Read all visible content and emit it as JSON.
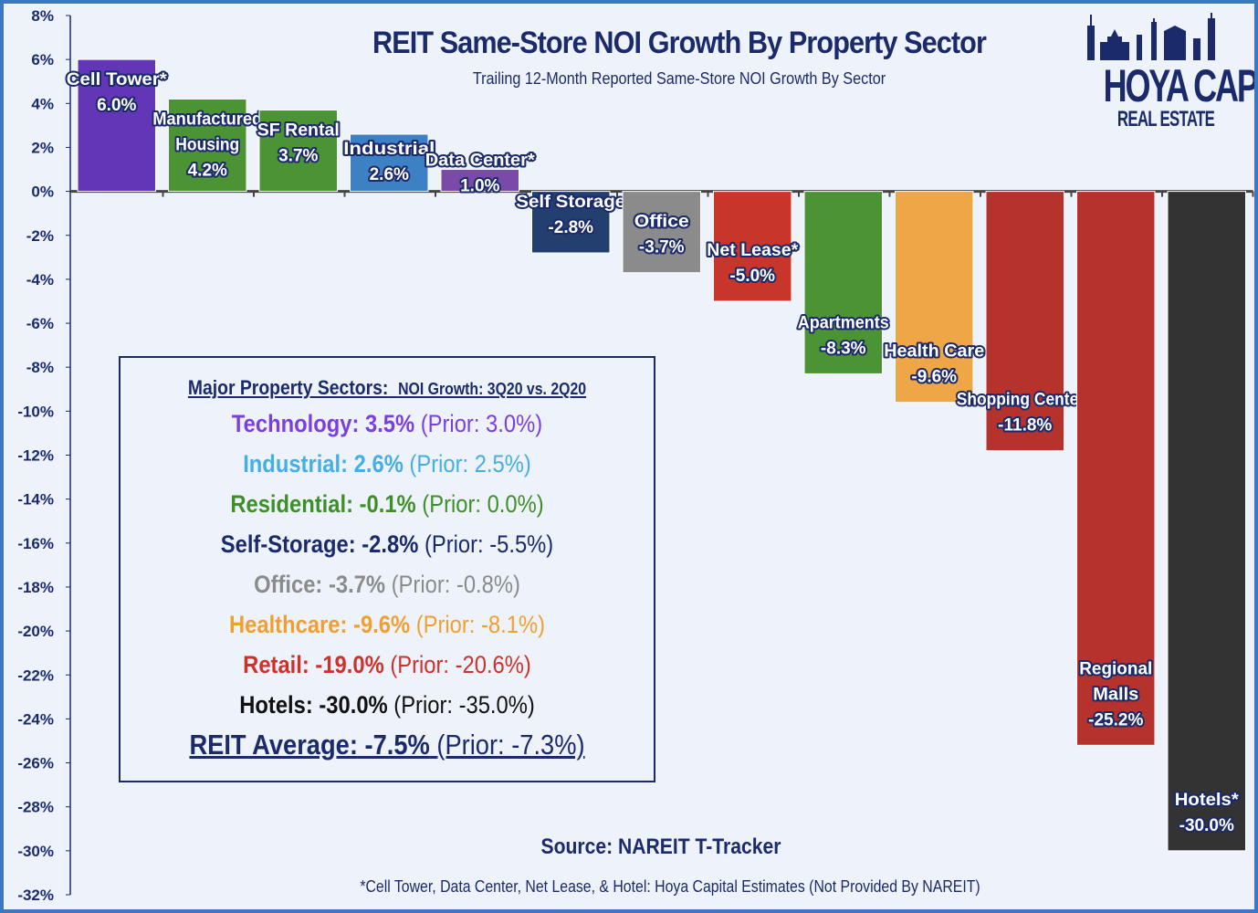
{
  "chart_data": {
    "type": "bar",
    "title": "REIT Same-Store NOI Growth By Property Sector",
    "subtitle": "Trailing 12-Month Reported Same-Store NOI Growth By Sector",
    "ylim": [
      -32,
      8
    ],
    "yticks": [
      8,
      6,
      4,
      2,
      0,
      -2,
      -4,
      -6,
      -8,
      -10,
      -12,
      -14,
      -16,
      -18,
      -20,
      -22,
      -24,
      -26,
      -28,
      -30,
      -32
    ],
    "ytick_labels": [
      "8%",
      "6%",
      "4%",
      "2%",
      "0%",
      "-2%",
      "-4%",
      "-6%",
      "-8%",
      "-10%",
      "-12%",
      "-14%",
      "-16%",
      "-18%",
      "-20%",
      "-22%",
      "-24%",
      "-26%",
      "-28%",
      "-30%",
      "-32%"
    ],
    "grid": false,
    "bars": [
      {
        "label": [
          "Cell Tower*"
        ],
        "value": 6.0,
        "value_label": "6.0%",
        "color": "#6236b6"
      },
      {
        "label": [
          "Manufactured",
          "Housing"
        ],
        "value": 4.2,
        "value_label": "4.2%",
        "color": "#4b9335"
      },
      {
        "label": [
          "SF Rental"
        ],
        "value": 3.7,
        "value_label": "3.7%",
        "color": "#4b9335"
      },
      {
        "label": [
          "Industrial"
        ],
        "value": 2.6,
        "value_label": "2.6%",
        "color": "#3e80c4"
      },
      {
        "label": [
          "Data Center*"
        ],
        "value": 1.0,
        "value_label": "1.0%",
        "color": "#7a4aa9"
      },
      {
        "label": [
          "Self Storage"
        ],
        "value": -2.8,
        "value_label": "-2.8%",
        "color": "#223f6f"
      },
      {
        "label": [
          "Office"
        ],
        "value": -3.7,
        "value_label": "-3.7%",
        "color": "#8b8b8b"
      },
      {
        "label": [
          "Net Lease*"
        ],
        "value": -5.0,
        "value_label": "-5.0%",
        "color": "#c8352b"
      },
      {
        "label": [
          "Apartments"
        ],
        "value": -8.3,
        "value_label": "-8.3%",
        "color": "#4b9335"
      },
      {
        "label": [
          "Health Care"
        ],
        "value": -9.6,
        "value_label": "-9.6%",
        "color": "#eea646"
      },
      {
        "label": [
          "Shopping Centers"
        ],
        "value": -11.8,
        "value_label": "-11.8%",
        "color": "#b5322d"
      },
      {
        "label": [
          "Regional",
          "Malls"
        ],
        "value": -25.2,
        "value_label": "-25.2%",
        "color": "#b5322d"
      },
      {
        "label": [
          "Hotels*"
        ],
        "value": -30.0,
        "value_label": "-30.0%",
        "color": "#333333"
      }
    ]
  },
  "legend": {
    "heading": "Major Property Sectors:",
    "heading_sub": "NOI Growth: 3Q20 vs. 2Q20",
    "rows": [
      {
        "name": "Technology:",
        "value": "3.5%",
        "prior": "(Prior: 3.0%)",
        "color": "#7b3fe0"
      },
      {
        "name": "Industrial:",
        "value": "2.6%",
        "prior": "(Prior: 2.5%)",
        "color": "#45aee6"
      },
      {
        "name": "Residential:",
        "value": "-0.1%",
        "prior": "(Prior: 0.0%)",
        "color": "#3f8f28"
      },
      {
        "name": "Self-Storage:",
        "value": "-2.8%",
        "prior": "(Prior: -5.5%)",
        "color": "#1b2a6b"
      },
      {
        "name": "Office:",
        "value": "-3.7%",
        "prior": "(Prior: -0.8%)",
        "color": "#8b8b8b"
      },
      {
        "name": "Healthcare:",
        "value": "-9.6%",
        "prior": "(Prior: -8.1%)",
        "color": "#f0a030"
      },
      {
        "name": "Retail:",
        "value": "-19.0%",
        "prior": "(Prior: -20.6%)",
        "color": "#d0302a"
      },
      {
        "name": "Hotels:",
        "value": "-30.0%",
        "prior": "(Prior: -35.0%)",
        "color": "#111111"
      }
    ],
    "average": {
      "name": "REIT Average:",
      "value": "-7.5%",
      "prior": "(Prior: -7.3%)"
    }
  },
  "source": "Source: NAREIT T-Tracker",
  "footnote": "*Cell Tower, Data Center, Net Lease, & Hotel: Hoya Capital Estimates (Not Provided By NAREIT)",
  "logo": {
    "main": "HOYA CAPITAL",
    "sub": "REAL ESTATE"
  }
}
